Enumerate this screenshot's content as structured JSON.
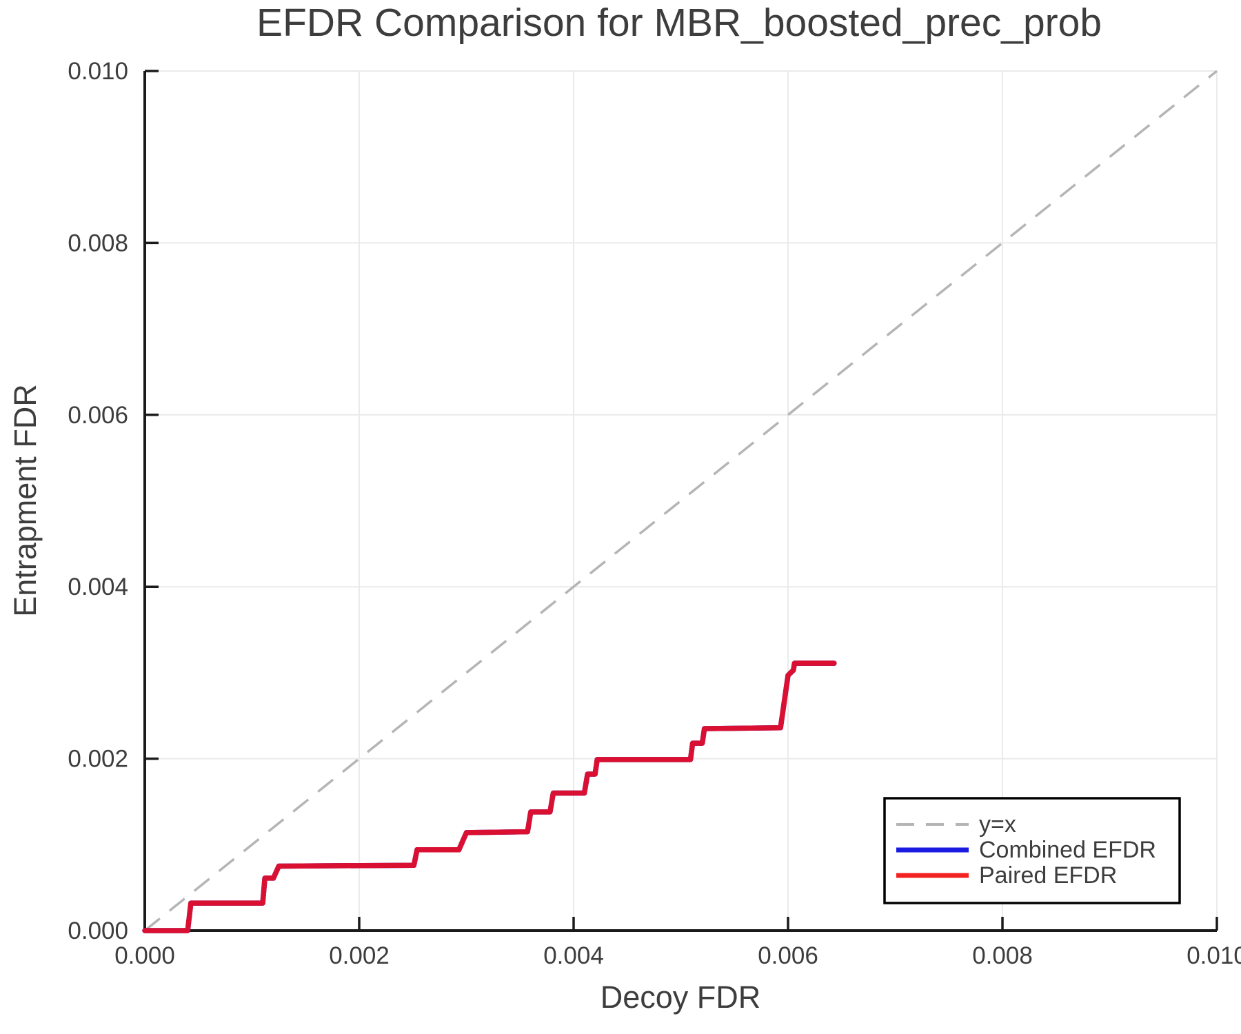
{
  "chart_data": {
    "type": "line",
    "title": "EFDR Comparison for MBR_boosted_prec_prob",
    "xlabel": "Decoy FDR",
    "ylabel": "Entrapment FDR",
    "xlim": [
      0.0,
      0.01
    ],
    "ylim": [
      0.0,
      0.01
    ],
    "x_ticks": [
      0.0,
      0.002,
      0.004,
      0.006,
      0.008,
      0.01
    ],
    "y_ticks": [
      0.0,
      0.002,
      0.004,
      0.006,
      0.008,
      0.01
    ],
    "x_tick_labels": [
      "0.000",
      "0.002",
      "0.004",
      "0.006",
      "0.008",
      "0.010"
    ],
    "y_tick_labels": [
      "0.000",
      "0.002",
      "0.004",
      "0.006",
      "0.008",
      "0.010"
    ],
    "grid": true,
    "legend_position": "lower right",
    "reference_line": {
      "label": "y=x",
      "style": "dashed",
      "from": [
        0.0,
        0.0
      ],
      "to": [
        0.01,
        0.01
      ]
    },
    "series": [
      {
        "name": "Combined EFDR",
        "color": "#1a1ae0",
        "legend_color": "#1a1ae0",
        "points": [
          [
            0.0,
            0.0
          ],
          [
            0.0004,
            0.0
          ],
          [
            0.00043,
            0.00032
          ],
          [
            0.0011,
            0.00032
          ],
          [
            0.00112,
            0.00061
          ],
          [
            0.0012,
            0.00061
          ],
          [
            0.00125,
            0.00075
          ],
          [
            0.00251,
            0.00076
          ],
          [
            0.00254,
            0.00094
          ],
          [
            0.00293,
            0.00094
          ],
          [
            0.003,
            0.00114
          ],
          [
            0.00357,
            0.00115
          ],
          [
            0.0036,
            0.00138
          ],
          [
            0.00378,
            0.00138
          ],
          [
            0.00381,
            0.0016
          ],
          [
            0.0041,
            0.0016
          ],
          [
            0.00413,
            0.00182
          ],
          [
            0.0042,
            0.00182
          ],
          [
            0.00422,
            0.00199
          ],
          [
            0.00509,
            0.00199
          ],
          [
            0.00511,
            0.00218
          ],
          [
            0.0052,
            0.00218
          ],
          [
            0.00522,
            0.00235
          ],
          [
            0.00593,
            0.00236
          ],
          [
            0.006,
            0.00297
          ],
          [
            0.00605,
            0.00303
          ],
          [
            0.00606,
            0.00311
          ],
          [
            0.00643,
            0.00311
          ]
        ]
      },
      {
        "name": "Paired EFDR",
        "color": "#da1032",
        "legend_color": "#f32222",
        "points": [
          [
            0.0,
            0.0
          ],
          [
            0.0004,
            0.0
          ],
          [
            0.00043,
            0.00032
          ],
          [
            0.0011,
            0.00032
          ],
          [
            0.00112,
            0.00061
          ],
          [
            0.0012,
            0.00061
          ],
          [
            0.00125,
            0.00075
          ],
          [
            0.00251,
            0.00076
          ],
          [
            0.00254,
            0.00094
          ],
          [
            0.00293,
            0.00094
          ],
          [
            0.003,
            0.00114
          ],
          [
            0.00357,
            0.00115
          ],
          [
            0.0036,
            0.00138
          ],
          [
            0.00378,
            0.00138
          ],
          [
            0.00381,
            0.0016
          ],
          [
            0.0041,
            0.0016
          ],
          [
            0.00413,
            0.00182
          ],
          [
            0.0042,
            0.00182
          ],
          [
            0.00422,
            0.00199
          ],
          [
            0.00509,
            0.00199
          ],
          [
            0.00511,
            0.00218
          ],
          [
            0.0052,
            0.00218
          ],
          [
            0.00522,
            0.00235
          ],
          [
            0.00593,
            0.00236
          ],
          [
            0.006,
            0.00297
          ],
          [
            0.00605,
            0.00303
          ],
          [
            0.00606,
            0.00311
          ],
          [
            0.00643,
            0.00311
          ]
        ]
      }
    ],
    "colors": {
      "reference_line": "#b5b5b5",
      "grid": "#eaeaea",
      "spine": "#1a1a1a",
      "text": "#3d3d3d",
      "legend_border": "#000000",
      "background": "#ffffff"
    }
  },
  "legend": {
    "items": [
      {
        "label": "y=x"
      },
      {
        "label": "Combined EFDR"
      },
      {
        "label": "Paired EFDR"
      }
    ]
  }
}
